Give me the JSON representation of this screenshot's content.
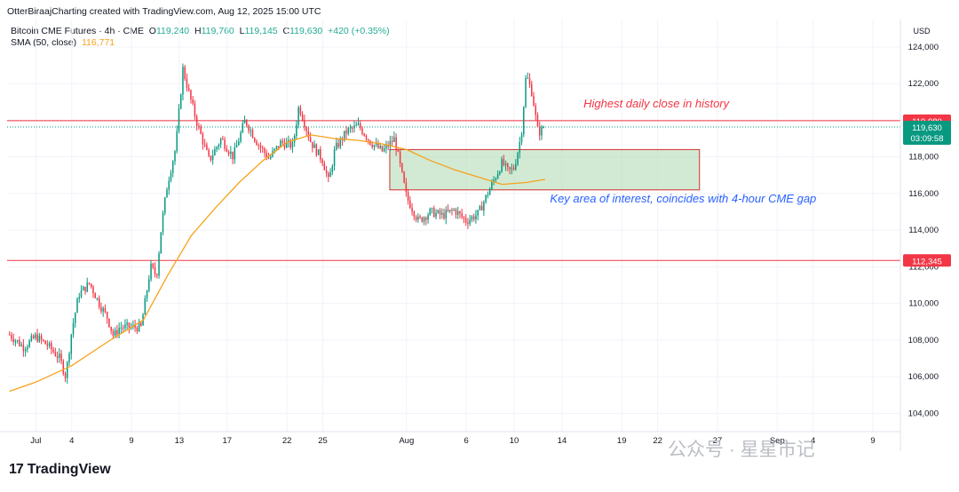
{
  "header": {
    "credit": "OtterBiraajCharting created with TradingView.com, Aug 12, 2025 15:00 UTC"
  },
  "legend": {
    "symbol": "Bitcoin CME Futures · 4h · CME",
    "open_label": "O",
    "open": "119,240",
    "high_label": "H",
    "high": "119,760",
    "low_label": "L",
    "low": "119,145",
    "close_label": "C",
    "close": "119,630",
    "change": "+420 (+0.35%)",
    "sma_label": "SMA (50, close)",
    "sma_value": "116,771"
  },
  "currency": "USD",
  "logo": "TradingView",
  "watermark": "公众号 · 星星市记",
  "chart_data": {
    "type": "candlestick",
    "timeframe": "4h",
    "x_tick_labels": [
      "Jul",
      "4",
      "9",
      "13",
      "17",
      "22",
      "25",
      "Aug",
      "6",
      "10",
      "14",
      "19",
      "22",
      "27",
      "Sep",
      "4",
      "9"
    ],
    "x_tick_days": [
      1,
      4,
      9,
      13,
      17,
      22,
      25,
      32,
      37,
      41,
      45,
      50,
      53,
      58,
      63,
      66,
      71
    ],
    "y_ticks": [
      104000,
      106000,
      108000,
      110000,
      112000,
      114000,
      116000,
      118000,
      120000,
      122000,
      124000
    ],
    "y_tick_labels": [
      "104,000",
      "106,000",
      "108,000",
      "110,000",
      "112,000",
      "114,000",
      "116,000",
      "118,000",
      "120,000",
      "122,000",
      "124,000"
    ],
    "ylim": [
      103000,
      125500
    ],
    "xlim_days": [
      -1.4,
      73.3
    ],
    "last_candle_day": 43.6,
    "grid": true,
    "price_path": [
      [
        -1.2,
        108300
      ],
      [
        0.0,
        107600
      ],
      [
        1.0,
        108200
      ],
      [
        2.0,
        107700
      ],
      [
        3.0,
        107000
      ],
      [
        3.5,
        106000
      ],
      [
        4.0,
        108500
      ],
      [
        4.6,
        110500
      ],
      [
        5.5,
        111100
      ],
      [
        6.3,
        110000
      ],
      [
        7.0,
        109200
      ],
      [
        7.5,
        108200
      ],
      [
        8.0,
        108700
      ],
      [
        9.0,
        108700
      ],
      [
        9.8,
        108700
      ],
      [
        10.0,
        109500
      ],
      [
        10.6,
        112000
      ],
      [
        11.1,
        111500
      ],
      [
        11.5,
        114200
      ],
      [
        12.0,
        116500
      ],
      [
        12.7,
        118500
      ],
      [
        13.3,
        122800
      ],
      [
        13.8,
        121500
      ],
      [
        14.5,
        119800
      ],
      [
        15.5,
        117800
      ],
      [
        16.5,
        119000
      ],
      [
        17.5,
        118000
      ],
      [
        18.5,
        120000
      ],
      [
        19.5,
        118800
      ],
      [
        20.5,
        117900
      ],
      [
        21.5,
        118800
      ],
      [
        22.5,
        118600
      ],
      [
        23.0,
        120800
      ],
      [
        24.0,
        118800
      ],
      [
        25.0,
        117800
      ],
      [
        25.5,
        116600
      ],
      [
        26.0,
        118400
      ],
      [
        27.0,
        119400
      ],
      [
        28.0,
        119700
      ],
      [
        29.0,
        118800
      ],
      [
        30.0,
        118300
      ],
      [
        31.0,
        119000
      ],
      [
        32.0,
        115800
      ],
      [
        33.0,
        114500
      ],
      [
        34.0,
        115000
      ],
      [
        35.0,
        114800
      ],
      [
        36.0,
        115100
      ],
      [
        37.0,
        114500
      ],
      [
        38.0,
        114900
      ],
      [
        39.0,
        116300
      ],
      [
        40.0,
        117700
      ],
      [
        40.5,
        117200
      ],
      [
        41.0,
        117400
      ],
      [
        41.6,
        119200
      ],
      [
        42.0,
        122500
      ],
      [
        42.5,
        121500
      ],
      [
        43.0,
        119300
      ],
      [
        43.6,
        119630
      ]
    ],
    "sma_50": [
      [
        -1.2,
        105200
      ],
      [
        1.0,
        105700
      ],
      [
        4.0,
        106600
      ],
      [
        7.0,
        107900
      ],
      [
        10.0,
        109100
      ],
      [
        12.0,
        111500
      ],
      [
        14.0,
        113700
      ],
      [
        16.0,
        115200
      ],
      [
        18.0,
        116600
      ],
      [
        20.0,
        117800
      ],
      [
        22.0,
        118800
      ],
      [
        24.0,
        119200
      ],
      [
        26.0,
        119000
      ],
      [
        28.0,
        118900
      ],
      [
        30.0,
        118700
      ],
      [
        32.0,
        118400
      ],
      [
        34.0,
        117800
      ],
      [
        36.0,
        117300
      ],
      [
        38.0,
        116900
      ],
      [
        40.0,
        116500
      ],
      [
        42.0,
        116600
      ],
      [
        43.6,
        116771
      ]
    ],
    "horizontal_levels": [
      {
        "price": 119980,
        "label": "119,980",
        "kind": "resistance"
      },
      {
        "price": 112345,
        "label": "112,345",
        "kind": "support"
      }
    ],
    "last_price": {
      "price": 119630,
      "label": "119,630",
      "countdown": "03:09:58"
    },
    "highlight_zone": {
      "day_start": 30.6,
      "day_end": 56.5,
      "price_low": 116200,
      "price_high": 118400
    },
    "annotations": [
      {
        "text": "Highest daily close in history",
        "day": 46.8,
        "price": 120700
      },
      {
        "text": "Key area of interest, coincides with 4-hour CME gap",
        "day": 44.0,
        "price": 115500
      }
    ]
  }
}
